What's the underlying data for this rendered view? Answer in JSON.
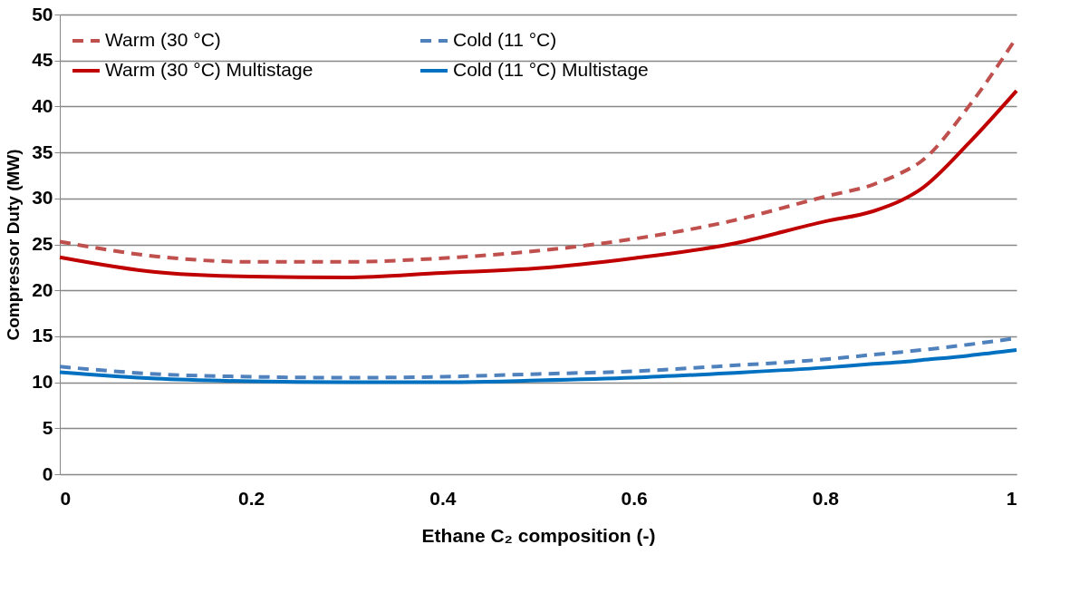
{
  "chart_data": {
    "type": "line",
    "xlabel": "Ethane C₂ composition (-)",
    "ylabel": "Compressor Duty (MW)",
    "xlim": [
      0,
      1
    ],
    "xticks": [
      0,
      0.2,
      0.4,
      0.6,
      0.8,
      1
    ],
    "ylim": [
      0,
      50
    ],
    "yticks": [
      0,
      5,
      10,
      15,
      20,
      25,
      30,
      35,
      40,
      45,
      50
    ],
    "grid": "y",
    "legend": "top",
    "marker": "none",
    "x": [
      0,
      0.1,
      0.2,
      0.3,
      0.4,
      0.5,
      0.6,
      0.7,
      0.8,
      0.85,
      0.88,
      0.9,
      0.95,
      1
    ],
    "series": [
      {
        "name": "Warm (30 °C)",
        "color": "#c0504d",
        "line_style": "dashed",
        "values": [
          25.3,
          23.7,
          23.1,
          23.1,
          23.5,
          24.3,
          25.6,
          27.5,
          30.2,
          31.5,
          32.8,
          34,
          40,
          47.5
        ]
      },
      {
        "name": "Warm (30 °C) Multistage",
        "color": "#c00000",
        "line_style": "solid",
        "values": [
          23.6,
          22.0,
          21.5,
          21.4,
          21.9,
          22.4,
          23.5,
          25,
          27.5,
          28.6,
          29.8,
          31,
          36,
          41.7
        ]
      },
      {
        "name": "Cold (11 °C)",
        "color": "#4f81bd",
        "line_style": "dashed",
        "values": [
          11.7,
          10.9,
          10.6,
          10.5,
          10.6,
          10.9,
          11.2,
          11.8,
          12.5,
          13,
          13.3,
          13.5,
          14.1,
          14.8
        ]
      },
      {
        "name": "Cold (11 °C) Multistage",
        "color": "#0070c0",
        "line_style": "solid",
        "values": [
          11.1,
          10.4,
          10.1,
          10.0,
          10.0,
          10.2,
          10.5,
          11.0,
          11.6,
          12.0,
          12.2,
          12.4,
          12.9,
          13.5
        ]
      }
    ]
  }
}
